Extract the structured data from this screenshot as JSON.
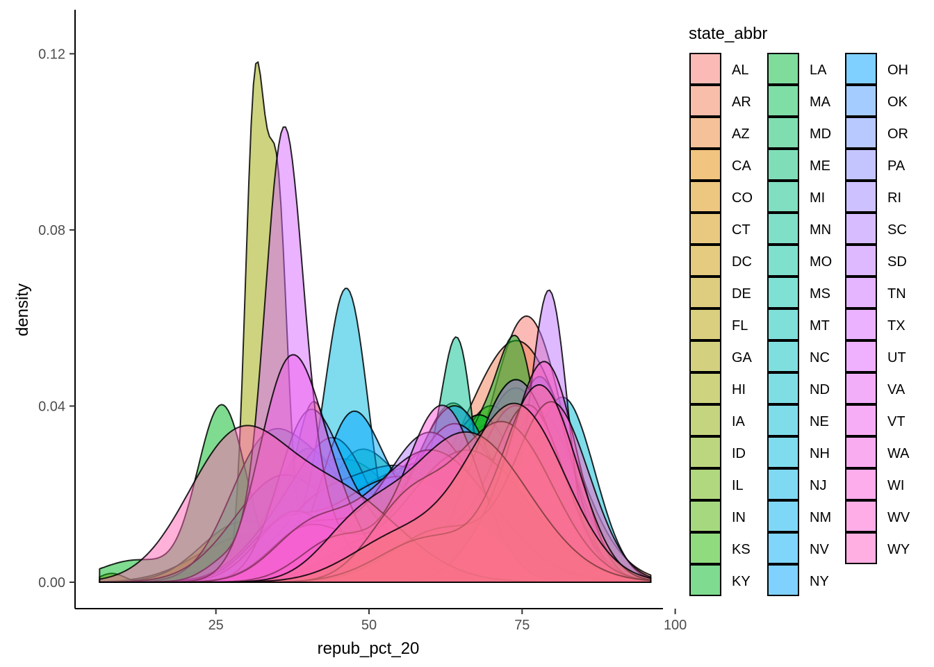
{
  "chart_data": {
    "type": "area",
    "subtype": "density",
    "title": "",
    "xlabel": "repub_pct_20",
    "ylabel": "density",
    "xlim": [
      2,
      98
    ],
    "ylim": [
      -0.006,
      0.13
    ],
    "xticks": [
      25,
      50,
      75,
      100
    ],
    "yticks": [
      0.0,
      0.04,
      0.08,
      0.12
    ],
    "ytick_labels": [
      "0.00",
      "0.04",
      "0.08",
      "0.12"
    ],
    "grid": false,
    "legend_position": "right",
    "legend_title": "state_abbr",
    "fill_alpha": 0.5,
    "x_domain": [
      6,
      96
    ],
    "series": [
      {
        "name": "AL",
        "color": "#F8766D",
        "peaks": [
          [
            76,
            0.058,
            6
          ],
          [
            58,
            0.012,
            10
          ],
          [
            30,
            0.004,
            8
          ]
        ]
      },
      {
        "name": "AR",
        "color": "#F17D54",
        "peaks": [
          [
            75,
            0.05,
            8
          ],
          [
            60,
            0.014,
            10
          ]
        ]
      },
      {
        "name": "AZ",
        "color": "#EA8331",
        "peaks": [
          [
            68,
            0.018,
            10
          ],
          [
            45,
            0.01,
            10
          ]
        ]
      },
      {
        "name": "CA",
        "color": "#E38900",
        "peaks": [
          [
            41,
            0.032,
            3
          ],
          [
            60,
            0.018,
            12
          ],
          [
            30,
            0.01,
            8
          ]
        ]
      },
      {
        "name": "CO",
        "color": "#DB8E00",
        "peaks": [
          [
            55,
            0.022,
            14
          ],
          [
            28,
            0.01,
            6
          ]
        ]
      },
      {
        "name": "CT",
        "color": "#D29300",
        "peaks": [
          [
            48,
            0.026,
            8
          ],
          [
            38,
            0.01,
            5
          ]
        ]
      },
      {
        "name": "DC",
        "color": "#C99800",
        "peaks": [
          [
            8,
            0.002,
            2
          ]
        ]
      },
      {
        "name": "DE",
        "color": "#BF9C00",
        "peaks": [
          [
            40,
            0.03,
            6
          ],
          [
            56,
            0.012,
            6
          ]
        ]
      },
      {
        "name": "FL",
        "color": "#B4A000",
        "peaks": [
          [
            68,
            0.034,
            8
          ],
          [
            45,
            0.01,
            8
          ]
        ]
      },
      {
        "name": "GA",
        "color": "#A8A400",
        "peaks": [
          [
            70,
            0.036,
            8
          ],
          [
            45,
            0.012,
            8
          ]
        ]
      },
      {
        "name": "HI",
        "color": "#9BA700",
        "peaks": [
          [
            31.4,
            0.11,
            1.6
          ],
          [
            35,
            0.085,
            1.6
          ],
          [
            40,
            0.01,
            3
          ]
        ]
      },
      {
        "name": "IA",
        "color": "#8BAB00",
        "peaks": [
          [
            64,
            0.04,
            6
          ],
          [
            50,
            0.01,
            6
          ]
        ]
      },
      {
        "name": "ID",
        "color": "#7AAE00",
        "peaks": [
          [
            74,
            0.044,
            7
          ],
          [
            50,
            0.01,
            8
          ]
        ]
      },
      {
        "name": "IL",
        "color": "#66B100",
        "peaks": [
          [
            68,
            0.038,
            7
          ],
          [
            40,
            0.008,
            8
          ]
        ]
      },
      {
        "name": "IN",
        "color": "#4EB400",
        "peaks": [
          [
            70,
            0.04,
            7
          ],
          [
            45,
            0.01,
            8
          ]
        ]
      },
      {
        "name": "KS",
        "color": "#24B700",
        "peaks": [
          [
            74,
            0.046,
            7
          ],
          [
            48,
            0.006,
            8
          ]
        ]
      },
      {
        "name": "KY",
        "color": "#00B81F",
        "peaks": [
          [
            74.5,
            0.05,
            3.5
          ],
          [
            67,
            0.03,
            4
          ],
          [
            26,
            0.04,
            4
          ],
          [
            12,
            0.005,
            6
          ]
        ]
      },
      {
        "name": "LA",
        "color": "#00BA38",
        "peaks": [
          [
            68,
            0.038,
            7
          ],
          [
            40,
            0.01,
            6
          ]
        ]
      },
      {
        "name": "MA",
        "color": "#00BB4E",
        "peaks": [
          [
            33,
            0.03,
            6
          ],
          [
            44,
            0.02,
            6
          ]
        ]
      },
      {
        "name": "MD",
        "color": "#00BC61",
        "peaks": [
          [
            36,
            0.024,
            8
          ],
          [
            58,
            0.016,
            8
          ]
        ]
      },
      {
        "name": "ME",
        "color": "#00BD72",
        "peaks": [
          [
            48,
            0.028,
            6
          ],
          [
            60,
            0.014,
            6
          ]
        ]
      },
      {
        "name": "MI",
        "color": "#00BF81",
        "peaks": [
          [
            60,
            0.03,
            8
          ],
          [
            40,
            0.01,
            6
          ]
        ]
      },
      {
        "name": "MN",
        "color": "#00C08F",
        "peaks": [
          [
            64.5,
            0.052,
            2.8
          ],
          [
            57,
            0.02,
            4
          ],
          [
            48,
            0.01,
            5
          ]
        ]
      },
      {
        "name": "MO",
        "color": "#00C19C",
        "peaks": [
          [
            74,
            0.04,
            7
          ],
          [
            50,
            0.008,
            8
          ]
        ]
      },
      {
        "name": "MS",
        "color": "#00C1A9",
        "peaks": [
          [
            62,
            0.022,
            10
          ],
          [
            40,
            0.012,
            8
          ]
        ]
      },
      {
        "name": "MT",
        "color": "#00C0B4",
        "peaks": [
          [
            66,
            0.03,
            8
          ],
          [
            45,
            0.008,
            6
          ]
        ]
      },
      {
        "name": "NC",
        "color": "#00BFC0",
        "peaks": [
          [
            62,
            0.026,
            10
          ],
          [
            45,
            0.012,
            8
          ]
        ]
      },
      {
        "name": "ND",
        "color": "#00BDCA",
        "peaks": [
          [
            78,
            0.038,
            6
          ],
          [
            64,
            0.012,
            6
          ]
        ]
      },
      {
        "name": "NE",
        "color": "#00BBD5",
        "peaks": [
          [
            82,
            0.04,
            5
          ],
          [
            70,
            0.014,
            6
          ]
        ]
      },
      {
        "name": "NH",
        "color": "#00B8DE",
        "peaks": [
          [
            46.5,
            0.064,
            3.5
          ],
          [
            40,
            0.01,
            4
          ]
        ]
      },
      {
        "name": "NJ",
        "color": "#00B4E7",
        "peaks": [
          [
            45,
            0.03,
            6
          ],
          [
            35,
            0.01,
            6
          ]
        ]
      },
      {
        "name": "NM",
        "color": "#00B0EF",
        "peaks": [
          [
            55,
            0.026,
            10
          ],
          [
            40,
            0.01,
            6
          ]
        ]
      },
      {
        "name": "NV",
        "color": "#00ABF6",
        "peaks": [
          [
            70,
            0.028,
            6
          ],
          [
            50,
            0.008,
            6
          ]
        ]
      },
      {
        "name": "NY",
        "color": "#00A6FD",
        "peaks": [
          [
            47,
            0.036,
            5
          ],
          [
            58,
            0.014,
            6
          ]
        ]
      },
      {
        "name": "OH",
        "color": "#00A0FF",
        "peaks": [
          [
            64,
            0.04,
            7
          ],
          [
            45,
            0.01,
            6
          ]
        ]
      },
      {
        "name": "OK",
        "color": "#4B9AFF",
        "peaks": [
          [
            78,
            0.046,
            5
          ],
          [
            64,
            0.01,
            6
          ]
        ]
      },
      {
        "name": "OR",
        "color": "#6F93FF",
        "peaks": [
          [
            55,
            0.024,
            12
          ],
          [
            35,
            0.008,
            5
          ]
        ]
      },
      {
        "name": "PA",
        "color": "#898BFF",
        "peaks": [
          [
            64,
            0.036,
            8
          ],
          [
            38,
            0.016,
            6
          ]
        ]
      },
      {
        "name": "RI",
        "color": "#9E83FF",
        "peaks": [
          [
            40,
            0.036,
            5
          ],
          [
            50,
            0.012,
            6
          ]
        ]
      },
      {
        "name": "SC",
        "color": "#B07BFF",
        "peaks": [
          [
            60,
            0.034,
            8
          ],
          [
            40,
            0.012,
            6
          ]
        ]
      },
      {
        "name": "SD",
        "color": "#BF73FF",
        "peaks": [
          [
            79.5,
            0.064,
            3
          ],
          [
            70,
            0.014,
            5
          ],
          [
            50,
            0.01,
            6
          ]
        ]
      },
      {
        "name": "TN",
        "color": "#CB6CFF",
        "peaks": [
          [
            74,
            0.046,
            7
          ],
          [
            48,
            0.008,
            6
          ]
        ]
      },
      {
        "name": "TX",
        "color": "#D666FF",
        "peaks": [
          [
            36,
            0.088,
            3
          ],
          [
            40,
            0.02,
            5
          ],
          [
            28,
            0.006,
            4
          ]
        ]
      },
      {
        "name": "UT",
        "color": "#E062FB",
        "peaks": [
          [
            76,
            0.04,
            6
          ],
          [
            60,
            0.01,
            6
          ]
        ]
      },
      {
        "name": "VA",
        "color": "#E85EF4",
        "peaks": [
          [
            66,
            0.03,
            10
          ],
          [
            40,
            0.012,
            6
          ]
        ]
      },
      {
        "name": "VT",
        "color": "#F05BEC",
        "peaks": [
          [
            37,
            0.048,
            5
          ],
          [
            45,
            0.012,
            5
          ]
        ]
      },
      {
        "name": "WA",
        "color": "#F65AE3",
        "peaks": [
          [
            60,
            0.03,
            10
          ],
          [
            40,
            0.01,
            6
          ]
        ]
      },
      {
        "name": "WI",
        "color": "#FB5AD9",
        "peaks": [
          [
            62,
            0.04,
            6
          ],
          [
            45,
            0.01,
            6
          ]
        ]
      },
      {
        "name": "WV",
        "color": "#FE5CCF",
        "peaks": [
          [
            79,
            0.048,
            5
          ],
          [
            70,
            0.01,
            5
          ]
        ]
      },
      {
        "name": "WY",
        "color": "#FF60C3",
        "peaks": [
          [
            80,
            0.04,
            6
          ],
          [
            62,
            0.012,
            8
          ]
        ]
      },
      {
        "name": "",
        "color": "#FF64B6",
        "peaks": [
          [
            28,
            0.03,
            8
          ],
          [
            45,
            0.02,
            10
          ]
        ]
      },
      {
        "name": "",
        "color": "#FF69A8",
        "peaks": [
          [
            72,
            0.036,
            8
          ],
          [
            56,
            0.016,
            6
          ]
        ]
      },
      {
        "name": "",
        "color": "#FD6E99",
        "peaks": [
          [
            78,
            0.044,
            6
          ],
          [
            60,
            0.01,
            8
          ]
        ]
      },
      {
        "name": "",
        "color": "#F9728A",
        "peaks": [
          [
            66,
            0.034,
            10
          ],
          [
            48,
            0.01,
            6
          ]
        ]
      },
      {
        "name": "",
        "color": "#F5767A",
        "peaks": [
          [
            74,
            0.04,
            8
          ],
          [
            55,
            0.01,
            8
          ]
        ]
      }
    ]
  }
}
